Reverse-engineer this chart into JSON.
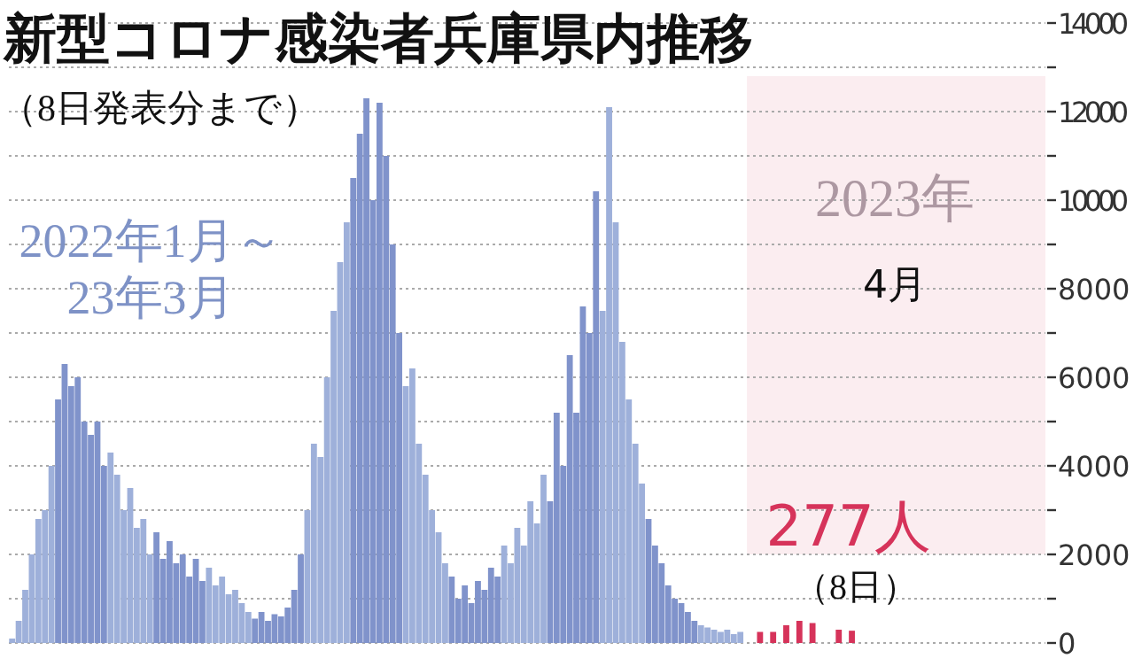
{
  "chart_data": {
    "type": "bar",
    "title": "新型コロナ感染者兵庫県内推移",
    "subtitle": "（8日発表分まで）",
    "categories": [
      null,
      null,
      null,
      null,
      null,
      null,
      null,
      null,
      null,
      null,
      null,
      null,
      null,
      null,
      null,
      null,
      null,
      null,
      null,
      null,
      null,
      null,
      null,
      null,
      null,
      null,
      null,
      null,
      null,
      null,
      null,
      null,
      null,
      null,
      null,
      null,
      null,
      null,
      null,
      null,
      null,
      null,
      null,
      null,
      null,
      null,
      null,
      null,
      null,
      null,
      null,
      null,
      null,
      null,
      null,
      null,
      null,
      null,
      null,
      null,
      null,
      null,
      null,
      null,
      null,
      null,
      null,
      null,
      null,
      null,
      null,
      null,
      null,
      null,
      null,
      null,
      null,
      null,
      null,
      null,
      null,
      null,
      null,
      null,
      null,
      null,
      null,
      null,
      null,
      null,
      null,
      null,
      null,
      null,
      null,
      null,
      null,
      null,
      null,
      null,
      null,
      null,
      null,
      null,
      null,
      null,
      null,
      null,
      null,
      null,
      null,
      null,
      null,
      null,
      null,
      null,
      null,
      null,
      null,
      null,
      null,
      null,
      null,
      null,
      null,
      null,
      null,
      null,
      null,
      null,
      null,
      null,
      null,
      null,
      null,
      null,
      null,
      null,
      null,
      null,
      null,
      null,
      null,
      null,
      null,
      null,
      null,
      null,
      null,
      null,
      null,
      null,
      null,
      null,
      null,
      null,
      null,
      null
    ],
    "series": [
      {
        "values": [
          100,
          500,
          1200,
          2000,
          2800,
          3000,
          4000,
          5500,
          6300,
          5800,
          6000,
          5000,
          4700,
          5000,
          4000,
          4300,
          3800,
          3000,
          3500,
          2600,
          2800,
          2000,
          2500,
          1900,
          2300,
          1800,
          2000,
          1500,
          1900,
          1400,
          1700,
          1300,
          1500,
          1100,
          1200,
          900,
          700,
          550,
          700,
          500,
          650,
          600,
          800,
          1200,
          2000,
          3000,
          4500,
          4200,
          6000,
          7500,
          8600,
          9500,
          10500,
          11500,
          12300,
          10000,
          12200,
          11000,
          9000,
          7000,
          5800,
          6200,
          4500,
          3800,
          3000,
          2500,
          1800,
          1500,
          1000,
          1300,
          900,
          1400,
          1200,
          1700,
          1500,
          2200,
          1800,
          2600,
          2200,
          3200,
          2700,
          3800,
          3200,
          5200,
          4000,
          6500,
          5200,
          7600,
          7000,
          10200,
          7500,
          12100,
          9500,
          6800,
          5500,
          4500,
          3600,
          2800,
          2200,
          1800,
          1300,
          1000,
          900,
          700,
          500,
          400,
          350,
          300,
          250,
          300,
          200,
          250,
          null,
          null,
          null,
          null,
          null,
          null,
          null,
          null,
          null,
          null,
          null,
          null,
          null,
          null,
          null,
          null,
          null,
          null,
          null,
          null,
          null,
          null,
          null,
          null,
          null,
          null,
          null,
          null,
          null,
          null,
          null,
          null,
          null,
          null,
          null,
          null,
          null,
          null,
          null,
          null,
          null,
          null,
          null,
          null,
          null,
          null
        ],
        "colors": [
          "#9eb0da",
          "#9eb0da",
          "#9eb0da",
          "#9eb0da",
          "#9eb0da",
          "#9eb0da",
          "#9eb0da",
          "#8093cb",
          "#8093cb",
          "#8093cb",
          "#8093cb",
          "#8093cb",
          "#8093cb",
          "#8093cb",
          "#8093cb",
          "#9eb0da",
          "#9eb0da",
          "#9eb0da",
          "#9eb0da",
          "#9eb0da",
          "#9eb0da",
          "#9eb0da",
          "#8093cb",
          "#8093cb",
          "#8093cb",
          "#8093cb",
          "#8093cb",
          "#8093cb",
          "#8093cb",
          "#8093cb",
          "#9eb0da",
          "#9eb0da",
          "#9eb0da",
          "#9eb0da",
          "#9eb0da",
          "#9eb0da",
          "#9eb0da",
          "#8093cb",
          "#8093cb",
          "#8093cb",
          "#8093cb",
          "#8093cb",
          "#8093cb",
          "#8093cb",
          "#8093cb",
          "#9eb0da",
          "#9eb0da",
          "#9eb0da",
          "#9eb0da",
          "#9eb0da",
          "#9eb0da",
          "#9eb0da",
          "#8093cb",
          "#8093cb",
          "#8093cb",
          "#8093cb",
          "#8093cb",
          "#8093cb",
          "#8093cb",
          "#8093cb",
          "#9eb0da",
          "#9eb0da",
          "#9eb0da",
          "#9eb0da",
          "#9eb0da",
          "#9eb0da",
          "#9eb0da",
          "#8093cb",
          "#8093cb",
          "#8093cb",
          "#8093cb",
          "#8093cb",
          "#8093cb",
          "#8093cb",
          "#8093cb",
          "#9eb0da",
          "#9eb0da",
          "#9eb0da",
          "#9eb0da",
          "#9eb0da",
          "#9eb0da",
          "#9eb0da",
          "#8093cb",
          "#8093cb",
          "#8093cb",
          "#8093cb",
          "#8093cb",
          "#8093cb",
          "#8093cb",
          "#8093cb",
          "#9eb0da",
          "#9eb0da",
          "#9eb0da",
          "#9eb0da",
          "#9eb0da",
          "#9eb0da",
          "#9eb0da",
          "#8093cb",
          "#8093cb",
          "#8093cb",
          "#8093cb",
          "#8093cb",
          "#8093cb",
          "#8093cb",
          "#8093cb",
          "#9eb0da",
          "#9eb0da",
          "#9eb0da",
          "#9eb0da",
          "#9eb0da",
          "#9eb0da",
          "#9eb0da",
          null,
          null,
          null,
          null,
          null,
          null,
          null,
          null,
          null,
          null,
          null,
          null,
          null,
          null,
          null,
          null,
          null,
          null,
          null,
          null,
          null,
          null,
          null,
          null,
          null,
          null,
          null,
          null,
          null,
          null,
          null,
          null,
          null,
          null,
          null,
          null,
          null,
          null,
          null,
          null,
          null,
          null,
          null,
          null,
          null,
          null
        ]
      },
      {
        "color": "#d6335a",
        "values": [
          null,
          null,
          null,
          null,
          null,
          null,
          null,
          null,
          null,
          null,
          null,
          null,
          null,
          null,
          null,
          null,
          null,
          null,
          null,
          null,
          null,
          null,
          null,
          null,
          null,
          null,
          null,
          null,
          null,
          null,
          null,
          null,
          null,
          null,
          null,
          null,
          null,
          null,
          null,
          null,
          null,
          null,
          null,
          null,
          null,
          null,
          null,
          null,
          null,
          null,
          null,
          null,
          null,
          null,
          null,
          null,
          null,
          null,
          null,
          null,
          null,
          null,
          null,
          null,
          null,
          null,
          null,
          null,
          null,
          null,
          null,
          null,
          null,
          null,
          null,
          null,
          null,
          null,
          null,
          null,
          null,
          null,
          null,
          null,
          null,
          null,
          null,
          null,
          null,
          null,
          null,
          null,
          null,
          null,
          null,
          null,
          null,
          null,
          null,
          null,
          null,
          null,
          null,
          null,
          null,
          null,
          null,
          null,
          null,
          null,
          null,
          null,
          null,
          null,
          250,
          null,
          250,
          null,
          400,
          null,
          500,
          null,
          450,
          null,
          null,
          null,
          300,
          null,
          277,
          null,
          null,
          null,
          null,
          null,
          null,
          null,
          null,
          null,
          null,
          null,
          null,
          null,
          null,
          null,
          null,
          null,
          null,
          null,
          null,
          null,
          null,
          null,
          null,
          null,
          null,
          null,
          null,
          null
        ],
        "value_labels": [
          null,
          null,
          null,
          null,
          null,
          null,
          null,
          null,
          null,
          null,
          null,
          null,
          null,
          null,
          null,
          null,
          null,
          null,
          null,
          null,
          null,
          null,
          null,
          null,
          null,
          null,
          null,
          null,
          null,
          null,
          null,
          null,
          null,
          null,
          null,
          null,
          null,
          null,
          null,
          null,
          null,
          null,
          null,
          null,
          null,
          null,
          null,
          null,
          null,
          null,
          null,
          null,
          null,
          null,
          null,
          null,
          null,
          null,
          null,
          null,
          null,
          null,
          null,
          null,
          null,
          null,
          null,
          null,
          null,
          null,
          null,
          null,
          null,
          null,
          null,
          null,
          null,
          null,
          null,
          null,
          null,
          null,
          null,
          null,
          null,
          null,
          null,
          null,
          null,
          null,
          null,
          null,
          null,
          null,
          null,
          null,
          null,
          null,
          null,
          null,
          null,
          null,
          null,
          null,
          null,
          null,
          null,
          null,
          null,
          null,
          null,
          null,
          null,
          null,
          null,
          null,
          null,
          null,
          null,
          null,
          null,
          null,
          null,
          null,
          null,
          null,
          null,
          null,
          "277人",
          null,
          null,
          null,
          null,
          null,
          null,
          null,
          null,
          null,
          null,
          null,
          null,
          null,
          null,
          null,
          null,
          null,
          null,
          null,
          null,
          null,
          null,
          null,
          null,
          null,
          null,
          null,
          null,
          null
        ]
      }
    ],
    "ylim": [
      0,
      14000
    ],
    "yticks": [
      0,
      {
        "value": 1000,
        "label": null
      },
      2000,
      {
        "value": 3000,
        "label": null
      },
      4000,
      {
        "value": 5000,
        "label": null
      },
      6000,
      {
        "value": 7000,
        "label": null
      },
      8000,
      {
        "value": 9000,
        "label": null
      },
      10000,
      {
        "value": 11000,
        "label": null
      },
      12000,
      {
        "value": 13000,
        "label": null
      },
      14000
    ],
    "grid": "y",
    "annotations": [
      "2022年1月～\n23年3月",
      "2023年",
      "4月",
      "（8日）"
    ]
  }
}
